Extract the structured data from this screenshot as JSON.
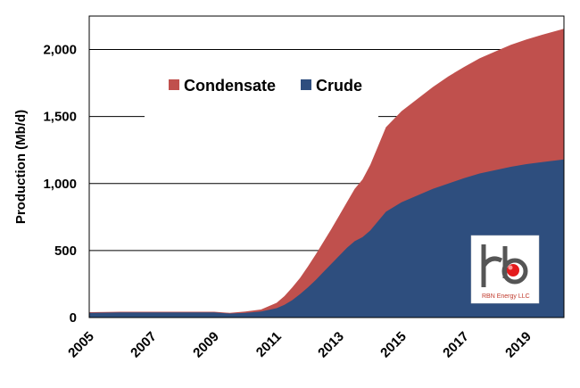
{
  "chart_data": {
    "type": "area",
    "title": "",
    "xlabel": "",
    "ylabel": "Production (Mb/d)",
    "xlim": [
      2005,
      2020.2
    ],
    "ylim": [
      0,
      2250
    ],
    "x_ticks": [
      "2005",
      "2007",
      "2009",
      "2011",
      "2013",
      "2015",
      "2017",
      "2019"
    ],
    "y_ticks": [
      "0",
      "500",
      "1,000",
      "1,500",
      "2,000"
    ],
    "stacked": true,
    "x": [
      2005,
      2006,
      2007,
      2008,
      2009,
      2009.5,
      2010,
      2010.5,
      2011,
      2011.25,
      2011.5,
      2011.75,
      2012,
      2012.25,
      2012.5,
      2012.75,
      2013,
      2013.25,
      2013.5,
      2013.75,
      2014,
      2014.25,
      2014.5,
      2015,
      2015.5,
      2016,
      2016.5,
      2017,
      2017.5,
      2018,
      2018.5,
      2019,
      2019.5,
      2020.2
    ],
    "series": [
      {
        "name": "Crude",
        "color": "#2e4e7e",
        "values": [
          35,
          38,
          38,
          38,
          38,
          30,
          35,
          45,
          70,
          95,
          130,
          175,
          225,
          280,
          340,
          400,
          460,
          520,
          570,
          600,
          650,
          720,
          790,
          860,
          910,
          960,
          1000,
          1040,
          1075,
          1100,
          1125,
          1145,
          1160,
          1180
        ]
      },
      {
        "name": "Condensate",
        "color": "#c0504d",
        "values": [
          5,
          5,
          5,
          5,
          5,
          5,
          10,
          15,
          40,
          65,
          95,
          120,
          155,
          190,
          225,
          260,
          300,
          340,
          390,
          430,
          490,
          560,
          630,
          680,
          720,
          760,
          800,
          830,
          860,
          885,
          910,
          930,
          950,
          975
        ]
      }
    ],
    "legend_position": "top-left",
    "grid": "horizontal",
    "logo_text": "RBN Energy LLC"
  }
}
